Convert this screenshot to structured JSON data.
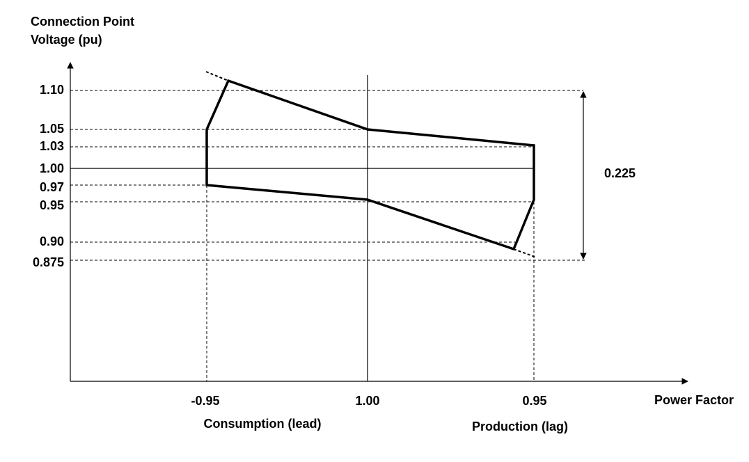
{
  "y_axis": {
    "title_line1": "Connection Point",
    "title_line2": "Voltage (pu)",
    "ticks": [
      "1.10",
      "1.05",
      "1.03",
      "1.00",
      "0.97",
      "0.95",
      "0.90",
      "0.875"
    ]
  },
  "x_axis": {
    "title": "Power Factor",
    "ticks": [
      "-0.95",
      "1.00",
      "0.95"
    ],
    "left_label": "Consumption (lead)",
    "right_label": "Production (lag)"
  },
  "annotation": "0.225"
}
